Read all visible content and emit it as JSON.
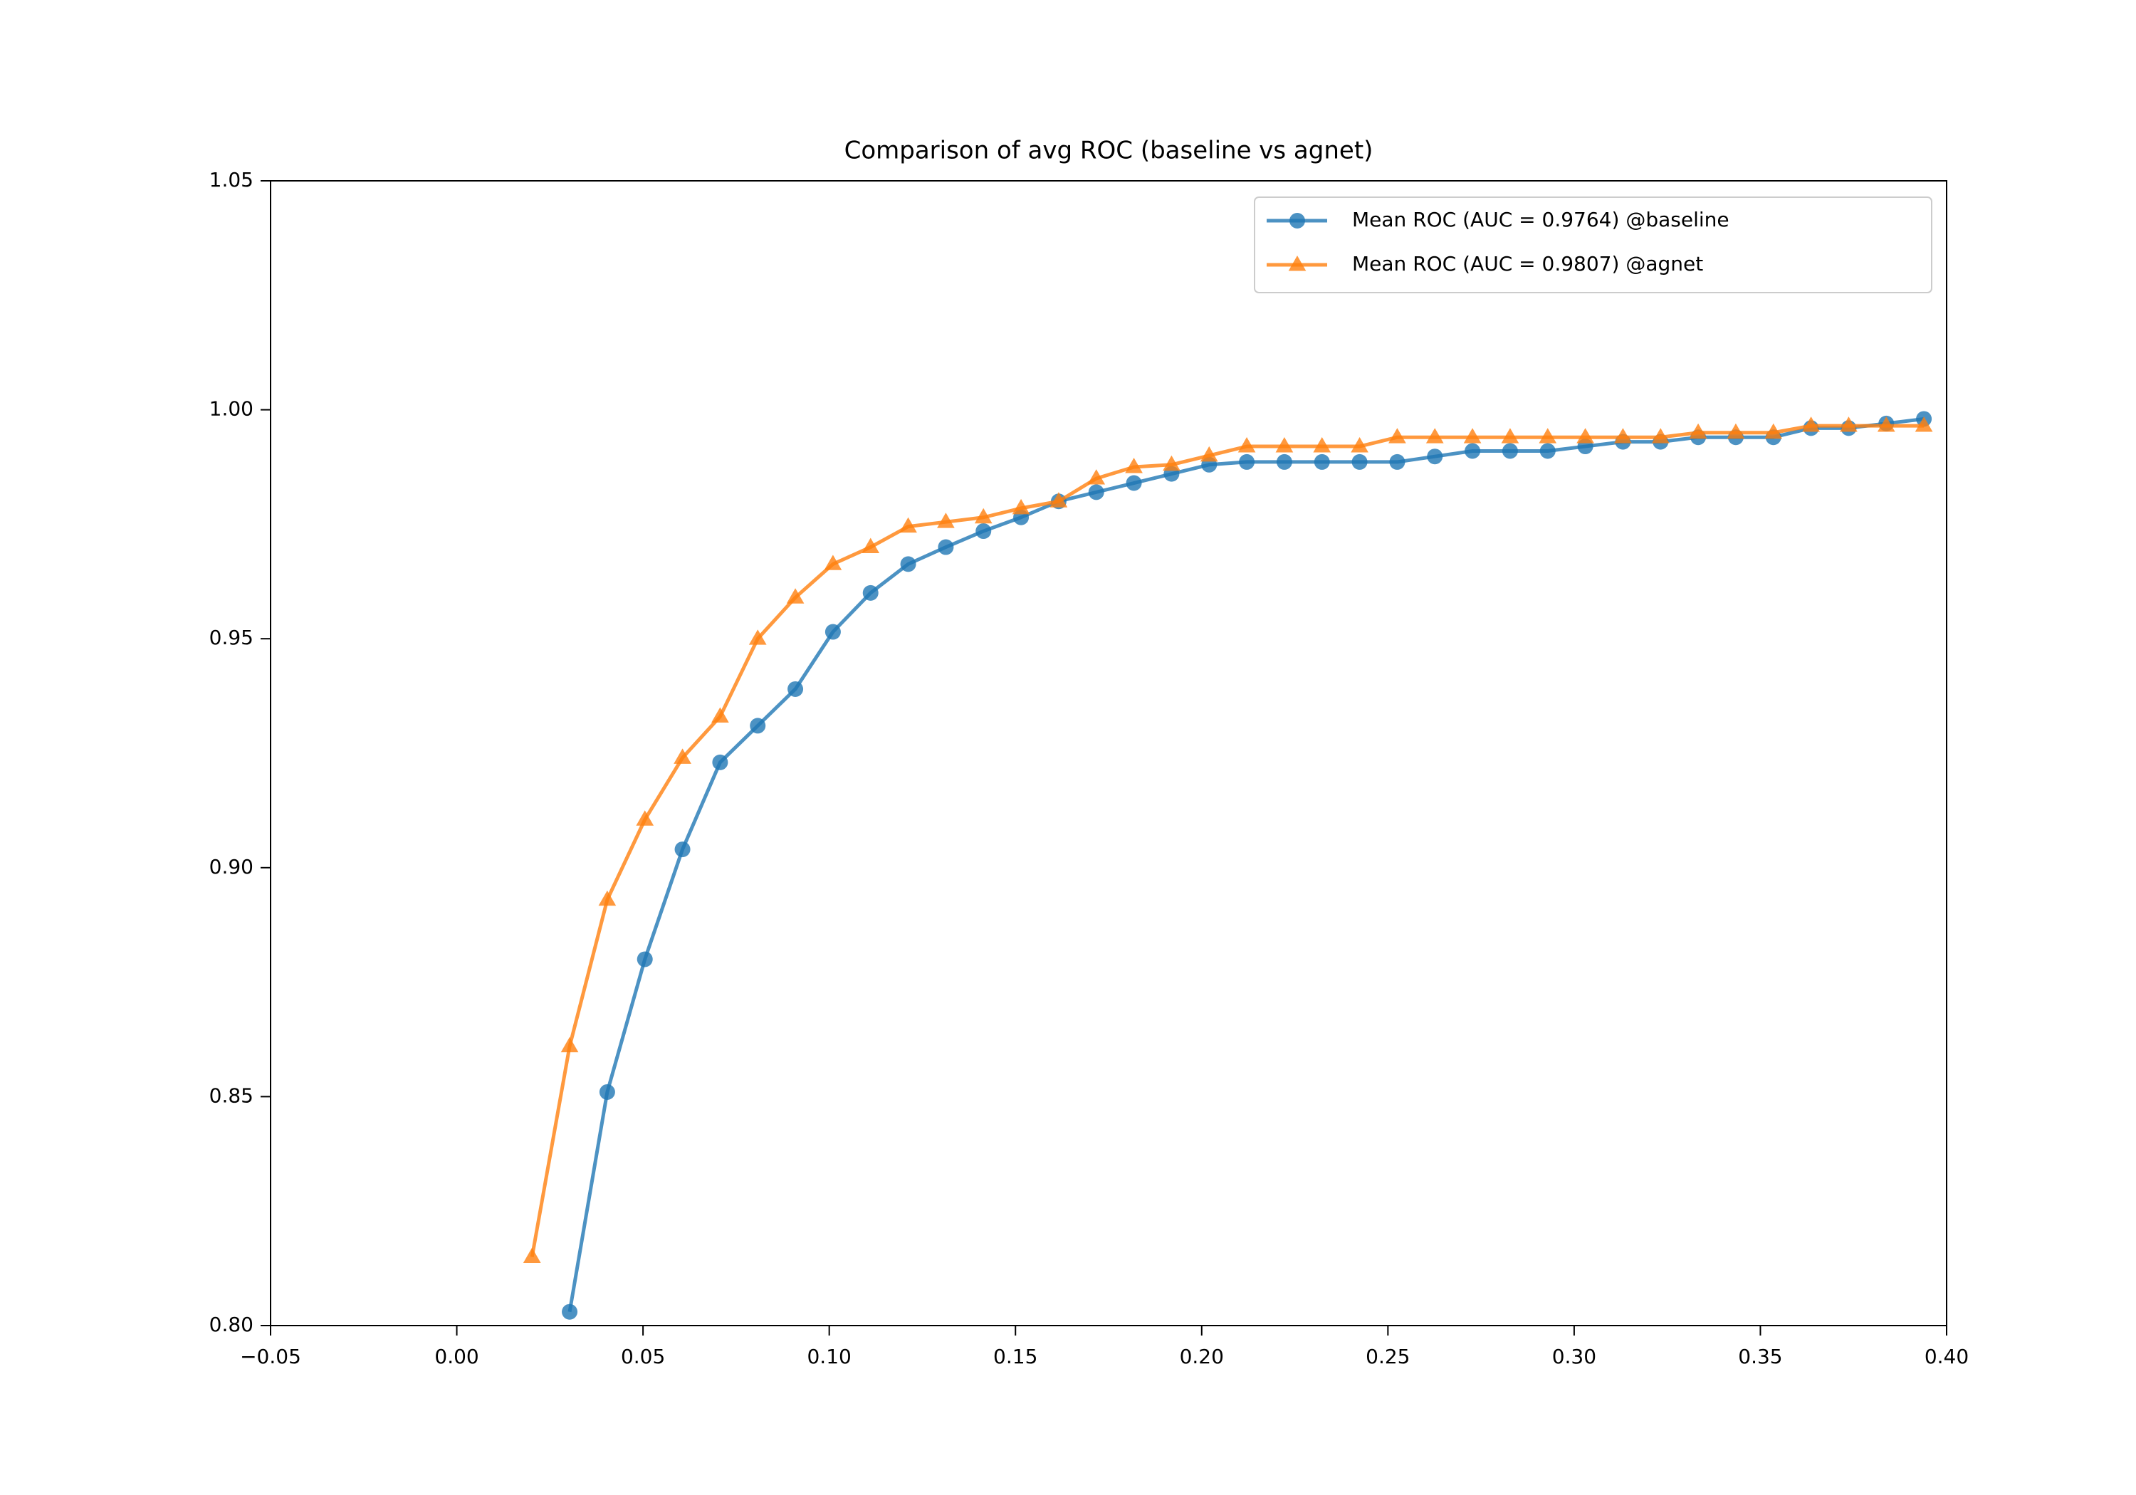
{
  "chart_data": {
    "type": "line",
    "title": "Comparison of avg ROC (baseline vs agnet)",
    "x": [
      0.0202,
      0.0303,
      0.0404,
      0.0505,
      0.0606,
      0.0707,
      0.0808,
      0.0909,
      0.101,
      0.1111,
      0.1212,
      0.1313,
      0.1414,
      0.1515,
      0.1616,
      0.1717,
      0.1818,
      0.1919,
      0.202,
      0.2121,
      0.2222,
      0.2323,
      0.2424,
      0.2525,
      0.2626,
      0.2727,
      0.2828,
      0.2929,
      0.303,
      0.3131,
      0.3232,
      0.3333,
      0.3434,
      0.3535,
      0.3636,
      0.3737,
      0.3838,
      0.3939
    ],
    "series": [
      {
        "name": "Mean ROC (AUC = 0.9764) @baseline",
        "color": "#1f77b4",
        "marker": "circle",
        "values": [
          null,
          0.803,
          0.851,
          0.88,
          0.904,
          0.923,
          0.931,
          0.939,
          0.9515,
          0.96,
          0.9663,
          0.97,
          0.9735,
          0.9765,
          0.98,
          0.982,
          0.984,
          0.986,
          0.988,
          0.9886,
          0.9886,
          0.9886,
          0.9886,
          0.9886,
          0.9898,
          0.991,
          0.991,
          0.991,
          0.992,
          0.993,
          0.993,
          0.994,
          0.994,
          0.994,
          0.996,
          0.996,
          0.997,
          0.998
        ]
      },
      {
        "name": "Mean ROC (AUC = 0.9807) @agnet",
        "color": "#ff7f0e",
        "marker": "triangle",
        "values": [
          0.815,
          0.861,
          0.893,
          0.9105,
          0.924,
          0.933,
          0.95,
          0.959,
          0.9663,
          0.97,
          0.9745,
          0.9755,
          0.9765,
          0.9785,
          0.98,
          0.985,
          0.9875,
          0.988,
          0.99,
          0.992,
          0.992,
          0.992,
          0.992,
          0.994,
          0.994,
          0.994,
          0.994,
          0.994,
          0.994,
          0.994,
          0.994,
          0.995,
          0.995,
          0.995,
          0.9965,
          0.9965,
          0.9965,
          0.9965
        ]
      }
    ],
    "xlim": [
      -0.05,
      0.4
    ],
    "ylim": [
      0.8,
      1.05
    ],
    "xticks": [
      {
        "value": -0.05,
        "label": "−0.05"
      },
      {
        "value": 0,
        "label": "0.00"
      },
      {
        "value": 0.05,
        "label": "0.05"
      },
      {
        "value": 0.1,
        "label": "0.10"
      },
      {
        "value": 0.15,
        "label": "0.15"
      },
      {
        "value": 0.2,
        "label": "0.20"
      },
      {
        "value": 0.25,
        "label": "0.25"
      },
      {
        "value": 0.3,
        "label": "0.30"
      },
      {
        "value": 0.35,
        "label": "0.35"
      },
      {
        "value": 0.4,
        "label": "0.40"
      }
    ],
    "yticks": [
      {
        "value": 0.8,
        "label": "0.80"
      },
      {
        "value": 0.85,
        "label": "0.85"
      },
      {
        "value": 0.9,
        "label": "0.90"
      },
      {
        "value": 0.95,
        "label": "0.95"
      },
      {
        "value": 1.0,
        "label": "1.00"
      },
      {
        "value": 1.05,
        "label": "1.05"
      }
    ],
    "legend": "upper right",
    "grid": false
  }
}
